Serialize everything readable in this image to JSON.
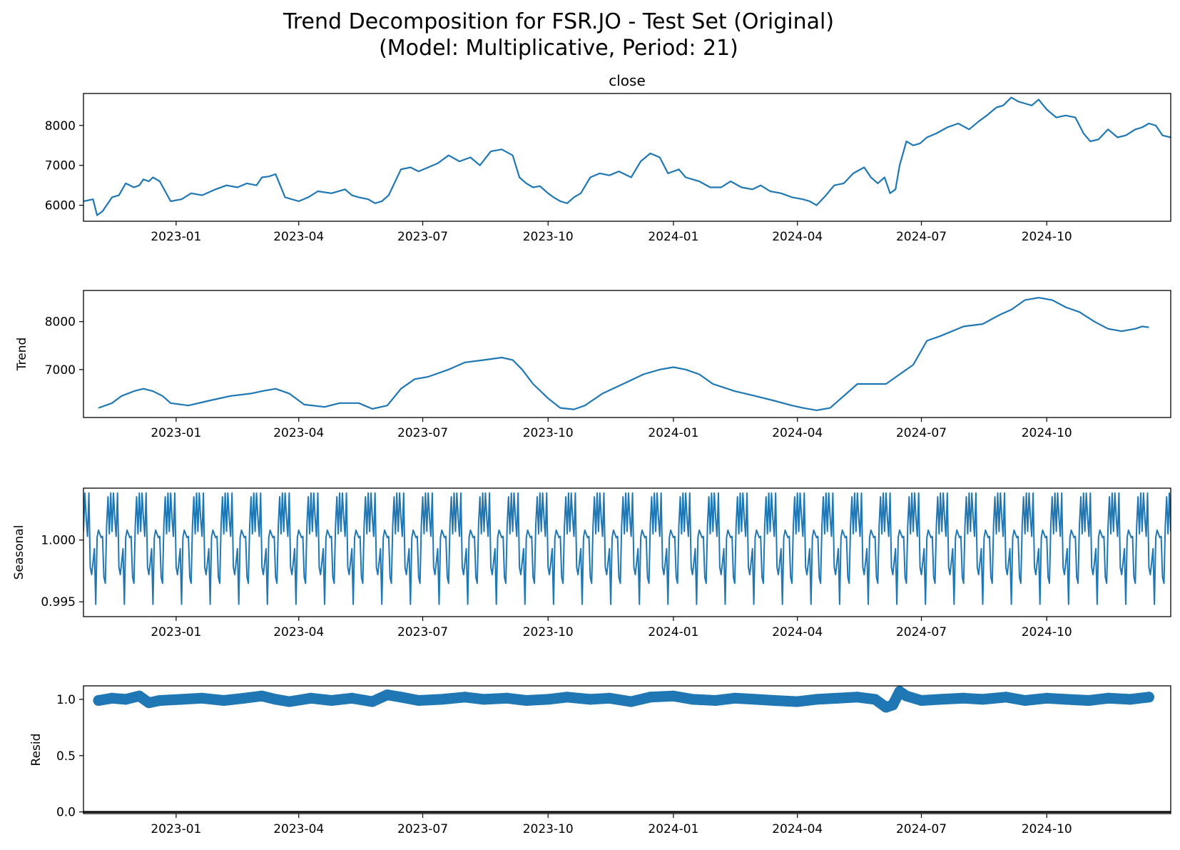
{
  "figure": {
    "title_line1": "Trend Decomposition for FSR.JO - Test Set (Original)",
    "title_line2": "(Model: Multiplicative, Period: 21)"
  },
  "chart_data": [
    {
      "type": "line",
      "title": "close",
      "xlabel": "",
      "ylabel": "",
      "color": "#1f77b4",
      "xlim": [
        "2022-10-25",
        "2024-12-31"
      ],
      "ylim": [
        5600,
        8800
      ],
      "yticks": [
        6000,
        7000,
        8000
      ],
      "ytick_labels": [
        "6000",
        "7000",
        "8000"
      ],
      "xticks": [
        "2023-01-01",
        "2023-04-01",
        "2023-07-01",
        "2023-10-01",
        "2024-01-01",
        "2024-04-01",
        "2024-07-01",
        "2024-10-01"
      ],
      "xtick_labels": [
        "2023-01",
        "2023-04",
        "2023-07",
        "2023-10",
        "2024-01",
        "2024-04",
        "2024-07",
        "2024-10"
      ],
      "grid": false,
      "series": [
        {
          "x": [
            "2022-10-25",
            "2022-11-01",
            "2022-11-04",
            "2022-11-08",
            "2022-11-15",
            "2022-11-20",
            "2022-11-25",
            "2022-12-01",
            "2022-12-05",
            "2022-12-08",
            "2022-12-12",
            "2022-12-15",
            "2022-12-20",
            "2022-12-28",
            "2023-01-05",
            "2023-01-12",
            "2023-01-20",
            "2023-01-30",
            "2023-02-07",
            "2023-02-15",
            "2023-02-22",
            "2023-03-01",
            "2023-03-05",
            "2023-03-10",
            "2023-03-15",
            "2023-03-22",
            "2023-04-01",
            "2023-04-08",
            "2023-04-15",
            "2023-04-25",
            "2023-05-05",
            "2023-05-10",
            "2023-05-15",
            "2023-05-22",
            "2023-05-27",
            "2023-06-01",
            "2023-06-06",
            "2023-06-15",
            "2023-06-22",
            "2023-06-28",
            "2023-07-05",
            "2023-07-12",
            "2023-07-20",
            "2023-07-28",
            "2023-08-05",
            "2023-08-12",
            "2023-08-20",
            "2023-08-28",
            "2023-09-05",
            "2023-09-10",
            "2023-09-15",
            "2023-09-20",
            "2023-09-25",
            "2023-10-01",
            "2023-10-05",
            "2023-10-10",
            "2023-10-15",
            "2023-10-20",
            "2023-10-25",
            "2023-11-01",
            "2023-11-08",
            "2023-11-15",
            "2023-11-22",
            "2023-12-01",
            "2023-12-08",
            "2023-12-15",
            "2023-12-22",
            "2023-12-28",
            "2024-01-05",
            "2024-01-10",
            "2024-01-15",
            "2024-01-20",
            "2024-01-28",
            "2024-02-05",
            "2024-02-12",
            "2024-02-20",
            "2024-02-28",
            "2024-03-05",
            "2024-03-12",
            "2024-03-20",
            "2024-03-28",
            "2024-04-05",
            "2024-04-10",
            "2024-04-15",
            "2024-04-22",
            "2024-04-28",
            "2024-05-05",
            "2024-05-12",
            "2024-05-20",
            "2024-05-25",
            "2024-05-30",
            "2024-06-04",
            "2024-06-08",
            "2024-06-12",
            "2024-06-15",
            "2024-06-20",
            "2024-06-25",
            "2024-06-30",
            "2024-07-05",
            "2024-07-12",
            "2024-07-20",
            "2024-07-28",
            "2024-08-05",
            "2024-08-12",
            "2024-08-18",
            "2024-08-25",
            "2024-08-30",
            "2024-09-05",
            "2024-09-10",
            "2024-09-15",
            "2024-09-20",
            "2024-09-25",
            "2024-10-01",
            "2024-10-08",
            "2024-10-15",
            "2024-10-22",
            "2024-10-28",
            "2024-11-02",
            "2024-11-08",
            "2024-11-15",
            "2024-11-22",
            "2024-11-28",
            "2024-12-05",
            "2024-12-10",
            "2024-12-15",
            "2024-12-20",
            "2024-12-25",
            "2024-12-31"
          ],
          "y": [
            6100,
            6150,
            5750,
            5850,
            6200,
            6250,
            6550,
            6450,
            6500,
            6650,
            6600,
            6700,
            6600,
            6100,
            6150,
            6300,
            6250,
            6400,
            6500,
            6450,
            6550,
            6500,
            6700,
            6720,
            6780,
            6200,
            6100,
            6200,
            6350,
            6300,
            6400,
            6250,
            6200,
            6150,
            6050,
            6100,
            6250,
            6900,
            6950,
            6850,
            6950,
            7050,
            7250,
            7100,
            7200,
            7000,
            7350,
            7400,
            7250,
            6700,
            6550,
            6450,
            6480,
            6300,
            6200,
            6100,
            6050,
            6200,
            6300,
            6700,
            6800,
            6750,
            6850,
            6700,
            7100,
            7300,
            7200,
            6800,
            6900,
            6700,
            6650,
            6600,
            6450,
            6450,
            6600,
            6450,
            6400,
            6500,
            6350,
            6300,
            6200,
            6150,
            6100,
            6000,
            6250,
            6500,
            6550,
            6800,
            6950,
            6700,
            6550,
            6700,
            6300,
            6400,
            7000,
            7600,
            7500,
            7550,
            7700,
            7800,
            7950,
            8050,
            7900,
            8100,
            8250,
            8450,
            8500,
            8700,
            8600,
            8550,
            8500,
            8650,
            8400,
            8200,
            8250,
            8200,
            7800,
            7600,
            7650,
            7900,
            7700,
            7750,
            7900,
            7950,
            8050,
            8000,
            7750,
            7700
          ]
        }
      ]
    },
    {
      "type": "line",
      "title": "",
      "xlabel": "",
      "ylabel": "Trend",
      "color": "#1f77b4",
      "xlim": [
        "2022-10-25",
        "2024-12-31"
      ],
      "ylim": [
        6000,
        8650
      ],
      "yticks": [
        7000,
        8000
      ],
      "ytick_labels": [
        "7000",
        "8000"
      ],
      "xticks": [
        "2023-01-01",
        "2023-04-01",
        "2023-07-01",
        "2023-10-01",
        "2024-01-01",
        "2024-04-01",
        "2024-07-01",
        "2024-10-01"
      ],
      "xtick_labels": [
        "2023-01",
        "2023-04",
        "2023-07",
        "2023-10",
        "2024-01",
        "2024-04",
        "2024-07",
        "2024-10"
      ],
      "grid": false,
      "series": [
        {
          "x": [
            "2022-11-05",
            "2022-11-15",
            "2022-11-22",
            "2022-12-01",
            "2022-12-08",
            "2022-12-15",
            "2022-12-22",
            "2022-12-28",
            "2023-01-10",
            "2023-01-25",
            "2023-02-10",
            "2023-02-25",
            "2023-03-05",
            "2023-03-15",
            "2023-03-25",
            "2023-04-05",
            "2023-04-20",
            "2023-05-01",
            "2023-05-15",
            "2023-05-25",
            "2023-06-05",
            "2023-06-15",
            "2023-06-25",
            "2023-07-05",
            "2023-07-20",
            "2023-08-01",
            "2023-08-15",
            "2023-08-28",
            "2023-09-05",
            "2023-09-12",
            "2023-09-20",
            "2023-10-01",
            "2023-10-10",
            "2023-10-20",
            "2023-10-28",
            "2023-11-10",
            "2023-11-25",
            "2023-12-10",
            "2023-12-22",
            "2024-01-01",
            "2024-01-10",
            "2024-01-20",
            "2024-01-30",
            "2024-02-15",
            "2024-03-01",
            "2024-03-15",
            "2024-03-28",
            "2024-04-05",
            "2024-04-15",
            "2024-04-25",
            "2024-05-05",
            "2024-05-15",
            "2024-05-25",
            "2024-06-05",
            "2024-06-15",
            "2024-06-25",
            "2024-07-05",
            "2024-07-15",
            "2024-08-01",
            "2024-08-15",
            "2024-08-28",
            "2024-09-05",
            "2024-09-15",
            "2024-09-25",
            "2024-10-05",
            "2024-10-15",
            "2024-10-25",
            "2024-11-05",
            "2024-11-15",
            "2024-11-25",
            "2024-12-05",
            "2024-12-10",
            "2024-12-15"
          ],
          "y": [
            6200,
            6300,
            6450,
            6550,
            6600,
            6550,
            6450,
            6300,
            6250,
            6350,
            6450,
            6500,
            6550,
            6600,
            6500,
            6270,
            6220,
            6300,
            6300,
            6180,
            6250,
            6600,
            6800,
            6850,
            7000,
            7150,
            7200,
            7250,
            7200,
            7000,
            6700,
            6400,
            6200,
            6170,
            6250,
            6500,
            6700,
            6900,
            7000,
            7050,
            7000,
            6900,
            6700,
            6550,
            6450,
            6350,
            6250,
            6200,
            6150,
            6200,
            6450,
            6700,
            6700,
            6700,
            6900,
            7100,
            7600,
            7700,
            7900,
            7950,
            8150,
            8250,
            8450,
            8500,
            8450,
            8300,
            8200,
            8000,
            7850,
            7800,
            7850,
            7900,
            7880
          ]
        }
      ]
    },
    {
      "type": "line",
      "title": "",
      "xlabel": "",
      "ylabel": "Seasonal",
      "color": "#1f77b4",
      "xlim": [
        "2022-10-25",
        "2024-12-31"
      ],
      "ylim": [
        0.9938,
        1.0042
      ],
      "yticks": [
        0.995,
        1.0
      ],
      "ytick_labels": [
        "0.995",
        "1.000"
      ],
      "xticks": [
        "2023-01-01",
        "2023-04-01",
        "2023-07-01",
        "2023-10-01",
        "2024-01-01",
        "2024-04-01",
        "2024-07-01",
        "2024-10-01"
      ],
      "xtick_labels": [
        "2023-01",
        "2023-04",
        "2023-07",
        "2023-10",
        "2024-01",
        "2024-04",
        "2024-07",
        "2024-10"
      ],
      "grid": false,
      "period_days": 21,
      "pattern": [
        1.0007,
        1.0038,
        1.0018,
        1.0003,
        1.0038,
        0.9978,
        0.9972,
        0.9982,
        0.9993,
        0.9948,
        1.0002,
        1.0008,
        1.0005,
        1.0002,
        1.0003,
        0.997,
        0.9965,
        1.0012,
        1.0035,
        1.0005,
        1.0038
      ],
      "start": "2022-10-25",
      "end": "2024-12-31"
    },
    {
      "type": "scatter",
      "title": "",
      "xlabel": "",
      "ylabel": "Resid",
      "color": "#1f77b4",
      "xlim": [
        "2022-10-25",
        "2024-12-31"
      ],
      "ylim": [
        -0.015,
        1.12
      ],
      "yticks": [
        0.0,
        0.5,
        1.0
      ],
      "ytick_labels": [
        "0.0",
        "0.5",
        "1.0"
      ],
      "xticks": [
        "2023-01-01",
        "2023-04-01",
        "2023-07-01",
        "2023-10-01",
        "2024-01-01",
        "2024-04-01",
        "2024-07-01",
        "2024-10-01"
      ],
      "xtick_labels": [
        "2023-01",
        "2023-04",
        "2023-07",
        "2023-10",
        "2024-01",
        "2024-04",
        "2024-07",
        "2024-10"
      ],
      "grid": false,
      "baseline": 0,
      "series": [
        {
          "x": [
            "2022-11-05",
            "2022-11-15",
            "2022-11-25",
            "2022-12-05",
            "2022-12-12",
            "2022-12-20",
            "2023-01-05",
            "2023-01-20",
            "2023-02-05",
            "2023-02-20",
            "2023-03-05",
            "2023-03-15",
            "2023-03-25",
            "2023-04-10",
            "2023-04-25",
            "2023-05-10",
            "2023-05-25",
            "2023-06-05",
            "2023-06-15",
            "2023-06-28",
            "2023-07-15",
            "2023-08-01",
            "2023-08-15",
            "2023-09-01",
            "2023-09-15",
            "2023-10-01",
            "2023-10-15",
            "2023-11-01",
            "2023-11-15",
            "2023-12-01",
            "2023-12-15",
            "2024-01-01",
            "2024-01-15",
            "2024-02-01",
            "2024-02-15",
            "2024-03-01",
            "2024-03-15",
            "2024-04-01",
            "2024-04-15",
            "2024-05-01",
            "2024-05-15",
            "2024-05-28",
            "2024-06-05",
            "2024-06-10",
            "2024-06-15",
            "2024-06-20",
            "2024-07-01",
            "2024-07-15",
            "2024-08-01",
            "2024-08-15",
            "2024-09-01",
            "2024-09-15",
            "2024-10-01",
            "2024-10-15",
            "2024-11-01",
            "2024-11-15",
            "2024-12-01",
            "2024-12-15"
          ],
          "y": [
            0.99,
            1.01,
            1.0,
            1.03,
            0.97,
            0.99,
            1.0,
            1.01,
            0.99,
            1.01,
            1.03,
            1.0,
            0.98,
            1.01,
            0.99,
            1.01,
            0.98,
            1.04,
            1.02,
            0.99,
            1.0,
            1.02,
            1.0,
            1.01,
            0.99,
            1.0,
            1.02,
            1.0,
            1.01,
            0.98,
            1.02,
            1.03,
            1.0,
            0.99,
            1.01,
            1.0,
            0.99,
            0.98,
            1.0,
            1.01,
            1.02,
            1.0,
            0.93,
            0.95,
            1.07,
            1.03,
            0.99,
            1.0,
            1.01,
            1.0,
            1.02,
            0.99,
            1.01,
            1.0,
            0.99,
            1.01,
            1.0,
            1.02
          ]
        }
      ]
    }
  ]
}
